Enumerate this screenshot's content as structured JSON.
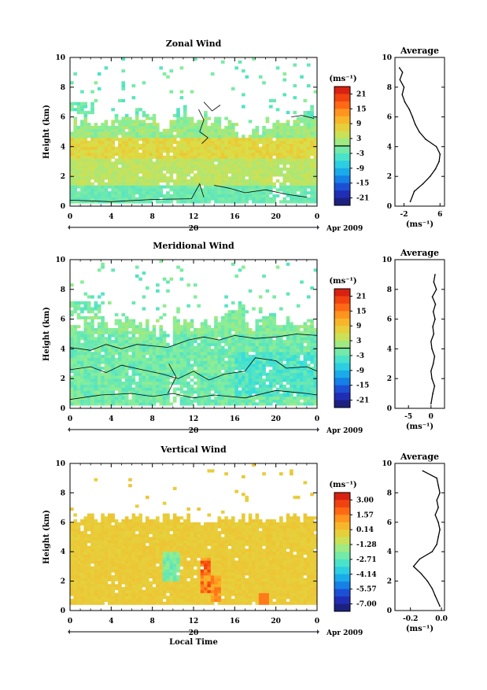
{
  "chart_data": [
    {
      "type": "heatmap",
      "title": "Zonal Wind",
      "ylabel": "Height (km)",
      "xlabel": "",
      "x_ticks": [
        "0",
        "4",
        "8",
        "12",
        "16",
        "20",
        "0"
      ],
      "y_ticks": [
        "0",
        "2",
        "4",
        "6",
        "8",
        "10"
      ],
      "xlim": [
        0,
        24
      ],
      "ylim": [
        0,
        10
      ],
      "day_label": "20",
      "date_label": "Apr 2009",
      "colorbar": {
        "unit_label": "(ms⁻¹)",
        "ticks": [
          "21",
          "15",
          "9",
          "3",
          "-3",
          "-9",
          "-15",
          "-21"
        ],
        "range": [
          -24,
          24
        ]
      },
      "zero_contour": true,
      "profile": {
        "title": "Average",
        "x_ticks": [
          "-2",
          "6"
        ],
        "xlim": [
          -4,
          7
        ],
        "xlabel": "(ms⁻¹)",
        "heights": [
          0.3,
          1.0,
          1.5,
          2.0,
          2.5,
          3.0,
          3.5,
          4.0,
          4.5,
          5.0,
          5.5,
          6.0,
          6.5,
          7.0,
          7.5,
          8.0,
          8.5,
          9.0,
          9.3
        ],
        "values": [
          -0.6,
          0.3,
          2.2,
          3.8,
          5.0,
          5.8,
          6.0,
          5.2,
          2.8,
          1.4,
          0.5,
          -0.1,
          -0.8,
          -1.8,
          -2.4,
          -2.0,
          -2.9,
          -2.3,
          -3.0
        ]
      }
    },
    {
      "type": "heatmap",
      "title": "Meridional Wind",
      "ylabel": "Height (km)",
      "xlabel": "",
      "x_ticks": [
        "0",
        "4",
        "8",
        "12",
        "16",
        "20",
        "0"
      ],
      "y_ticks": [
        "0",
        "2",
        "4",
        "6",
        "8",
        "10"
      ],
      "xlim": [
        0,
        24
      ],
      "ylim": [
        0,
        10
      ],
      "day_label": "20",
      "date_label": "Apr 2009",
      "colorbar": {
        "unit_label": "(ms⁻¹)",
        "ticks": [
          "21",
          "15",
          "9",
          "3",
          "-3",
          "-9",
          "-15",
          "-21"
        ],
        "range": [
          -24,
          24
        ]
      },
      "zero_contour": true,
      "profile": {
        "title": "Average",
        "x_ticks": [
          "-5",
          "0"
        ],
        "xlim": [
          -8,
          3
        ],
        "xlabel": "(ms⁻¹)",
        "heights": [
          0.3,
          1.0,
          1.5,
          2.0,
          2.5,
          3.0,
          3.5,
          4.0,
          4.5,
          5.0,
          5.5,
          6.0,
          6.5,
          7.0,
          7.5,
          8.0,
          8.5,
          9.0
        ],
        "values": [
          0.0,
          0.4,
          0.8,
          0.2,
          0.0,
          0.5,
          0.8,
          0.2,
          0.0,
          0.6,
          0.4,
          0.9,
          0.5,
          1.0,
          0.3,
          1.2,
          0.6,
          0.9
        ]
      }
    },
    {
      "type": "heatmap",
      "title": "Vertical Wind",
      "ylabel": "Height (km)",
      "xlabel": "Local Time",
      "x_ticks": [
        "0",
        "4",
        "8",
        "12",
        "16",
        "20",
        "0"
      ],
      "y_ticks": [
        "0",
        "2",
        "4",
        "6",
        "8",
        "10"
      ],
      "xlim": [
        0,
        24
      ],
      "ylim": [
        0,
        10
      ],
      "day_label": "20",
      "date_label": "Apr 2009",
      "colorbar": {
        "unit_label": "(ms⁻¹)",
        "ticks": [
          "3.00",
          "1.57",
          "0.14",
          "-1.28",
          "-2.71",
          "-4.14",
          "-5.57",
          "-7.00"
        ],
        "range": [
          -7.7,
          3.7
        ]
      },
      "zero_contour": false,
      "profile": {
        "title": "Average",
        "x_ticks": [
          "-0.2",
          "0.0"
        ],
        "xlim": [
          -0.3,
          0.02
        ],
        "xlabel": "(ms⁻¹)",
        "heights": [
          0.3,
          1.0,
          1.5,
          2.0,
          2.5,
          3.0,
          3.5,
          4.0,
          4.5,
          5.0,
          5.5,
          6.0,
          6.5,
          7.0,
          7.5,
          8.0,
          8.5,
          9.0,
          9.5
        ],
        "values": [
          -0.01,
          -0.04,
          -0.06,
          -0.09,
          -0.13,
          -0.18,
          -0.14,
          -0.06,
          -0.03,
          -0.02,
          -0.01,
          -0.02,
          -0.04,
          -0.02,
          -0.03,
          -0.01,
          -0.02,
          -0.03,
          -0.12
        ]
      }
    }
  ]
}
